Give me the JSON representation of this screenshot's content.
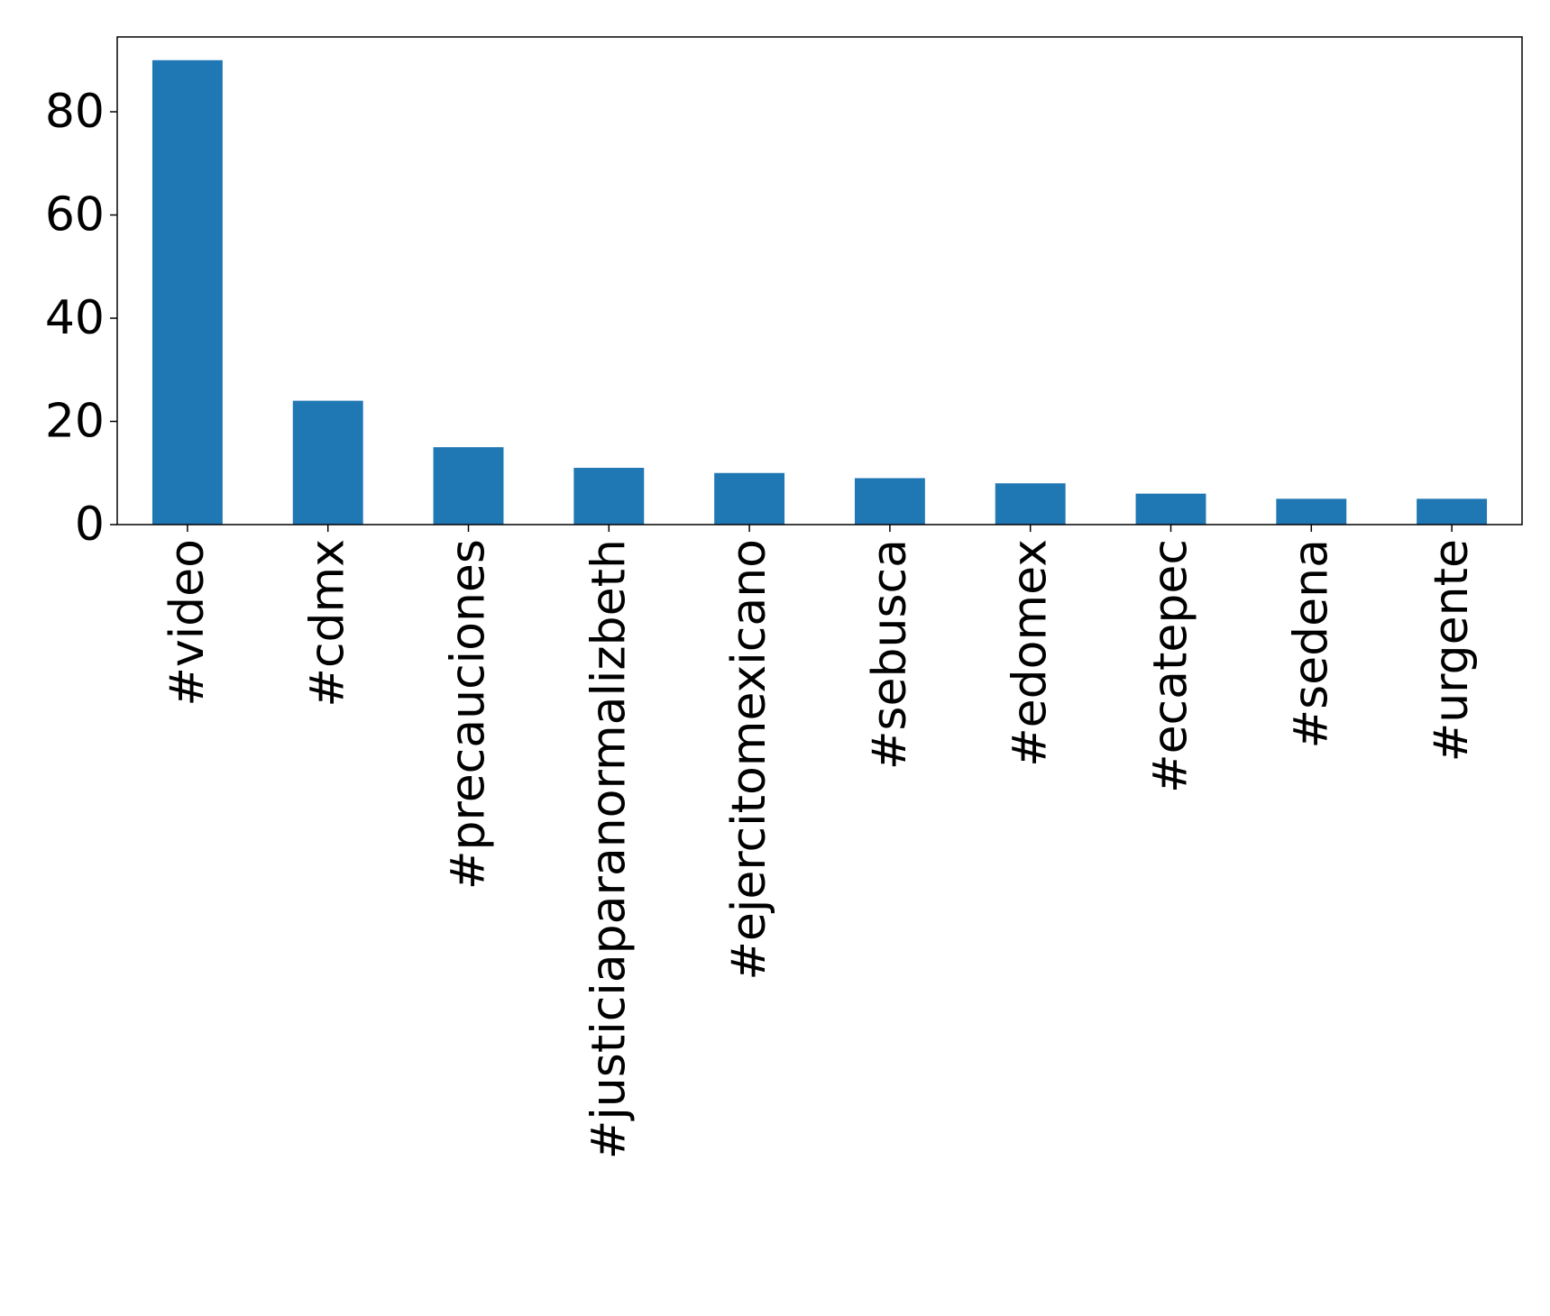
{
  "chart_data": {
    "type": "bar",
    "title": "",
    "xlabel": "",
    "ylabel": "",
    "categories": [
      "#video",
      "#cdmx",
      "#precauciones",
      "#justiciaparanormalizbeth",
      "#ejercitomexicano",
      "#sebusca",
      "#edomex",
      "#ecatepec",
      "#sedena",
      "#urgente"
    ],
    "values": [
      90,
      24,
      15,
      11,
      10,
      9,
      8,
      6,
      5,
      5
    ],
    "ylim": [
      0,
      94.5
    ],
    "yticks": [
      0,
      20,
      40,
      60,
      80
    ],
    "bar_color": "#1f77b4",
    "grid": false,
    "legend": "none"
  }
}
